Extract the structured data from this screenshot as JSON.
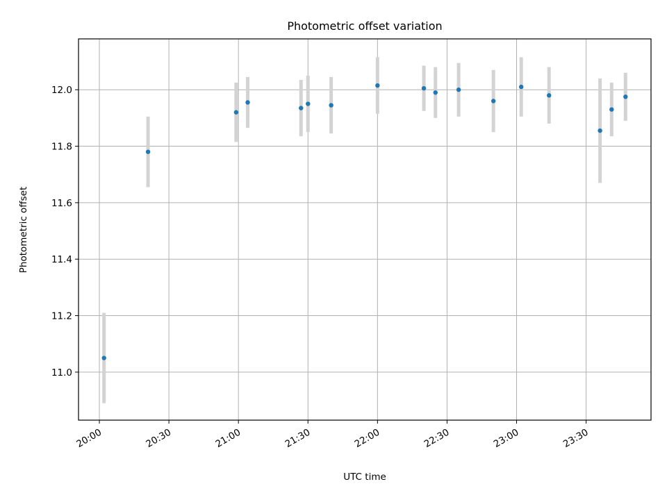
{
  "chart_data": {
    "type": "scatter",
    "title": "Photometric offset variation",
    "xlabel": "UTC time",
    "ylabel": "Photometric offset",
    "x_unit": "UTC time (HH:MM)",
    "x_range": [
      "19:51",
      "23:58"
    ],
    "ylim": [
      10.83,
      12.18
    ],
    "grid": true,
    "x_ticks": [
      "20:00",
      "20:30",
      "21:00",
      "21:30",
      "22:00",
      "22:30",
      "23:00",
      "23:30"
    ],
    "y_ticks": [
      "11.0",
      "11.2",
      "11.4",
      "11.6",
      "11.8",
      "12.0"
    ],
    "marker_color": "#1f77b4",
    "errorbar_color": "#d3d3d3",
    "points": [
      {
        "x": "20:02",
        "y": 11.05,
        "err": 0.16
      },
      {
        "x": "20:21",
        "y": 11.78,
        "err": 0.125
      },
      {
        "x": "20:59",
        "y": 11.92,
        "err": 0.105
      },
      {
        "x": "21:04",
        "y": 11.955,
        "err": 0.09
      },
      {
        "x": "21:27",
        "y": 11.935,
        "err": 0.1
      },
      {
        "x": "21:30",
        "y": 11.95,
        "err": 0.1
      },
      {
        "x": "21:40",
        "y": 11.945,
        "err": 0.1
      },
      {
        "x": "22:00",
        "y": 12.015,
        "err": 0.1
      },
      {
        "x": "22:20",
        "y": 12.005,
        "err": 0.08
      },
      {
        "x": "22:25",
        "y": 11.99,
        "err": 0.09
      },
      {
        "x": "22:35",
        "y": 12.0,
        "err": 0.095
      },
      {
        "x": "22:50",
        "y": 11.96,
        "err": 0.11
      },
      {
        "x": "23:02",
        "y": 12.01,
        "err": 0.105
      },
      {
        "x": "23:14",
        "y": 11.98,
        "err": 0.1
      },
      {
        "x": "23:36",
        "y": 11.855,
        "err": 0.185
      },
      {
        "x": "23:41",
        "y": 11.93,
        "err": 0.095
      },
      {
        "x": "23:47",
        "y": 11.975,
        "err": 0.085
      }
    ]
  }
}
